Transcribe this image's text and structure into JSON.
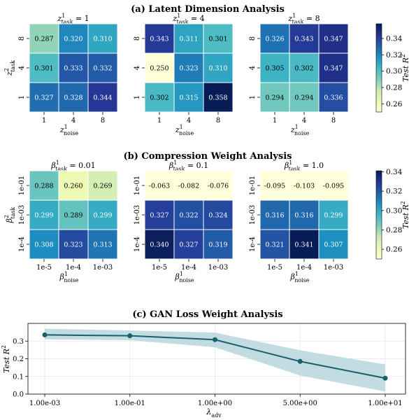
{
  "sections": {
    "a": "(a) Latent Dimension Analysis",
    "b": "(b) Compression Weight Analysis",
    "c": "(c) GAN Loss Weight Analysis"
  },
  "colorbar_label": "Test R²",
  "chart_data": [
    {
      "type": "heatmap",
      "section": "a",
      "title_main": "z",
      "title_sup": "1",
      "title_sub": "task",
      "title_eq": "= 1",
      "xlabel_main": "z",
      "xlabel_sup": "1",
      "xlabel_sub": "noise",
      "ylabel_main": "z",
      "ylabel_sup": "2",
      "ylabel_sub": "task",
      "x_categories": [
        "1",
        "4",
        "8"
      ],
      "y_categories": [
        "8",
        "4",
        "1"
      ],
      "values": [
        [
          0.287,
          0.32,
          0.31
        ],
        [
          0.301,
          0.333,
          0.332
        ],
        [
          0.327,
          0.328,
          0.344
        ]
      ],
      "value_labels": [
        [
          "0.287",
          "0.320",
          "0.310"
        ],
        [
          "0.301",
          "0.333",
          "0.332"
        ],
        [
          "0.327",
          "0.328",
          "0.344"
        ]
      ]
    },
    {
      "type": "heatmap",
      "section": "a",
      "title_main": "z",
      "title_sup": "1",
      "title_sub": "task",
      "title_eq": "= 4",
      "xlabel_main": "z",
      "xlabel_sup": "1",
      "xlabel_sub": "noise",
      "x_categories": [
        "1",
        "4",
        "8"
      ],
      "y_categories": [
        "8",
        "4",
        "1"
      ],
      "values": [
        [
          0.343,
          0.311,
          0.301
        ],
        [
          0.25,
          0.323,
          0.31
        ],
        [
          0.302,
          0.315,
          0.358
        ]
      ],
      "value_labels": [
        [
          "0.343",
          "0.311",
          "0.301"
        ],
        [
          "0.250",
          "0.323",
          "0.310"
        ],
        [
          "0.302",
          "0.315",
          "0.358"
        ]
      ]
    },
    {
      "type": "heatmap",
      "section": "a",
      "title_main": "z",
      "title_sup": "1",
      "title_sub": "task",
      "title_eq": "= 8",
      "xlabel_main": "z",
      "xlabel_sup": "1",
      "xlabel_sub": "noise",
      "x_categories": [
        "1",
        "4",
        "8"
      ],
      "y_categories": [
        "8",
        "4",
        "1"
      ],
      "values": [
        [
          0.326,
          0.343,
          0.347
        ],
        [
          0.305,
          0.302,
          0.347
        ],
        [
          0.294,
          0.294,
          0.336
        ]
      ],
      "value_labels": [
        [
          "0.326",
          "0.343",
          "0.347"
        ],
        [
          "0.305",
          "0.302",
          "0.347"
        ],
        [
          "0.294",
          "0.294",
          "0.336"
        ]
      ]
    },
    {
      "type": "heatmap",
      "section": "b",
      "title_main": "β",
      "title_sup": "1",
      "title_sub": "task",
      "title_eq": "= 0.01",
      "xlabel_main": "β",
      "xlabel_sup": "1",
      "xlabel_sub": "noise",
      "ylabel_main": "β",
      "ylabel_sup": "2",
      "ylabel_sub": "task",
      "x_categories": [
        "1e-5",
        "1e-4",
        "1e-03"
      ],
      "y_categories": [
        "1e-01",
        "1e-03",
        "1e-4"
      ],
      "values": [
        [
          0.288,
          0.26,
          0.269
        ],
        [
          0.299,
          0.289,
          0.299
        ],
        [
          0.308,
          0.323,
          0.313
        ]
      ],
      "value_labels": [
        [
          "0.288",
          "0.260",
          "0.269"
        ],
        [
          "0.299",
          "0.289",
          "0.299"
        ],
        [
          "0.308",
          "0.323",
          "0.313"
        ]
      ]
    },
    {
      "type": "heatmap",
      "section": "b",
      "title_main": "β",
      "title_sup": "1",
      "title_sub": "task",
      "title_eq": "= 0.1",
      "xlabel_main": "β",
      "xlabel_sup": "1",
      "xlabel_sub": "noise",
      "x_categories": [
        "1e-5",
        "1e-4",
        "1e-03"
      ],
      "y_categories": [
        "1e-01",
        "1e-03",
        "1e-4"
      ],
      "values": [
        [
          -0.063,
          -0.082,
          -0.076
        ],
        [
          0.327,
          0.322,
          0.324
        ],
        [
          0.34,
          0.327,
          0.319
        ]
      ],
      "value_labels": [
        [
          "-0.063",
          "-0.082",
          "-0.076"
        ],
        [
          "0.327",
          "0.322",
          "0.324"
        ],
        [
          "0.340",
          "0.327",
          "0.319"
        ]
      ]
    },
    {
      "type": "heatmap",
      "section": "b",
      "title_main": "β",
      "title_sup": "1",
      "title_sub": "task",
      "title_eq": "= 1.0",
      "xlabel_main": "β",
      "xlabel_sup": "1",
      "xlabel_sub": "noise",
      "x_categories": [
        "1e-5",
        "1e-4",
        "1e-03"
      ],
      "y_categories": [
        "1e-01",
        "1e-03",
        "1e-4"
      ],
      "values": [
        [
          -0.095,
          -0.103,
          -0.095
        ],
        [
          0.316,
          0.316,
          0.299
        ],
        [
          0.321,
          0.341,
          0.307
        ]
      ],
      "value_labels": [
        [
          "-0.095",
          "-0.103",
          "-0.095"
        ],
        [
          "0.316",
          "0.316",
          "0.299"
        ],
        [
          "0.321",
          "0.341",
          "0.307"
        ]
      ]
    },
    {
      "type": "line",
      "section": "c",
      "x_categories": [
        "1.00e-03",
        "1.00e-01",
        "1.00e+00",
        "5.00e+00",
        "1.00e+01"
      ],
      "values": [
        0.335,
        0.33,
        0.308,
        0.185,
        0.09
      ],
      "band_lower": [
        0.31,
        0.305,
        0.265,
        0.105,
        0.015
      ],
      "band_upper": [
        0.37,
        0.36,
        0.348,
        0.248,
        0.168
      ],
      "ylabel_main": "Test R",
      "ylabel_sup": "2",
      "xlabel_main": "λ",
      "xlabel_sub": "adv",
      "yticks": [
        "0.0",
        "0.1",
        "0.2",
        "0.3"
      ],
      "ylim": [
        0.0,
        0.4
      ],
      "grid": true,
      "line_color": "#17616e",
      "band_color": "#b8d6dc"
    }
  ],
  "colorbars": [
    {
      "section": "a",
      "min": 0.25,
      "max": 0.358,
      "ticks": [
        "0.26",
        "0.28",
        "0.30",
        "0.32",
        "0.34"
      ],
      "label_main": "Test R",
      "label_sup": "2"
    },
    {
      "section": "b",
      "min": 0.25,
      "max": 0.341,
      "ticks": [
        "0.26",
        "0.28",
        "0.30",
        "0.32",
        "0.34"
      ],
      "label_main": "Test R",
      "label_sup": "2"
    }
  ],
  "colormap": "YlGnBu"
}
